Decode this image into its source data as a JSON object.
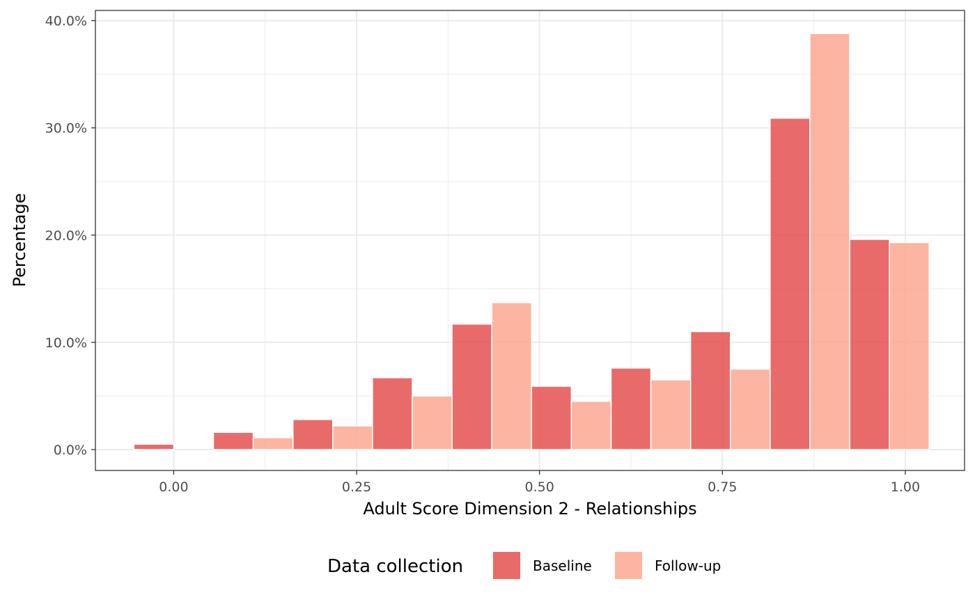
{
  "chart_data": {
    "type": "bar",
    "xlabel": "Adult Score Dimension 2 - Relationships",
    "ylabel": "Percentage",
    "x_ticks": [
      "0.00",
      "0.25",
      "0.50",
      "0.75",
      "1.00"
    ],
    "x_tick_values": [
      0,
      0.25,
      0.5,
      0.75,
      1.0
    ],
    "y_ticks": [
      "0.0%",
      "10.0%",
      "20.0%",
      "30.0%",
      "40.0%"
    ],
    "y_tick_values": [
      0,
      10,
      20,
      30,
      40
    ],
    "xlim": [
      -0.107,
      1.081
    ],
    "ylim": [
      -1.95,
      40.95
    ],
    "bin_centers": [
      0,
      0.1087,
      0.2174,
      0.3261,
      0.4348,
      0.5435,
      0.6522,
      0.7609,
      0.8696,
      0.9783
    ],
    "bin_width": 0.1087,
    "grid": true,
    "legend_position": "bottom",
    "legend_title": "Data collection",
    "series": [
      {
        "name": "Baseline",
        "color": "#E34A48",
        "values": [
          0.5,
          1.6,
          2.8,
          6.7,
          11.7,
          5.9,
          7.6,
          11.0,
          30.9,
          19.6
        ]
      },
      {
        "name": "Follow-up",
        "color": "#FCA58C",
        "values": [
          0.0,
          1.1,
          2.2,
          5.0,
          13.7,
          4.5,
          6.5,
          7.5,
          38.8,
          19.3
        ]
      }
    ]
  }
}
